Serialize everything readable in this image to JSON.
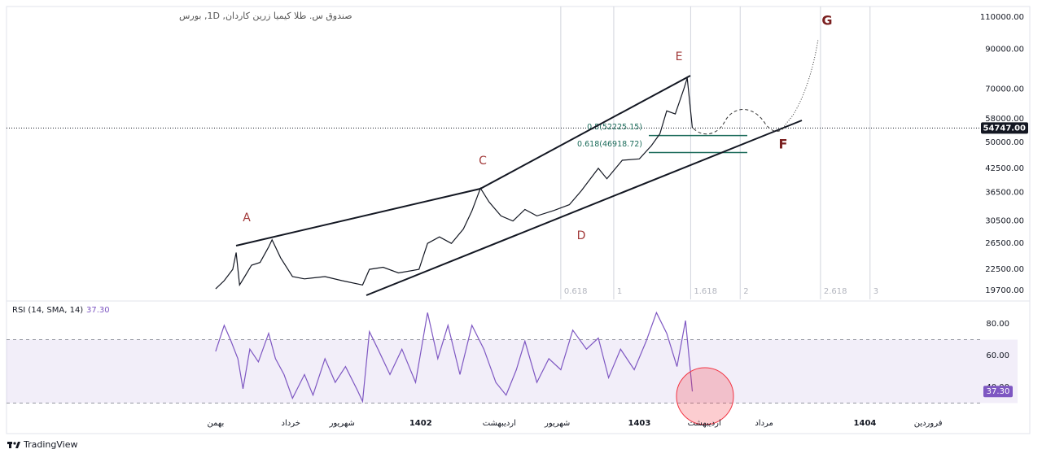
{
  "header": {
    "title": "صندوق س. طلا کیمیا زرین کاردان, 1D, بورس",
    "brand": "TradingView"
  },
  "chart_data": [
    {
      "type": "line",
      "color": "#131722",
      "log_scale": true,
      "xlim": [
        -12.24,
        43.6
      ],
      "ylim": [
        18630,
        117600
      ],
      "yticks": [
        {
          "value": 19700,
          "label": "19700.00"
        },
        {
          "value": 22500,
          "label": "22500.00"
        },
        {
          "value": 26500,
          "label": "26500.00"
        },
        {
          "value": 30500,
          "label": "30500.00"
        },
        {
          "value": 36500,
          "label": "36500.00"
        },
        {
          "value": 42500,
          "label": "42500.00"
        },
        {
          "value": 50000,
          "label": "50000.00"
        },
        {
          "value": 58000,
          "label": "58000.00"
        },
        {
          "value": 70000,
          "label": "70000.00"
        },
        {
          "value": 90000,
          "label": "90000.00"
        },
        {
          "value": 110000,
          "label": "110000.00"
        }
      ],
      "x": [
        0,
        0.5,
        1,
        1.2,
        1.4,
        1.7,
        2.1,
        2.6,
        3.1,
        3.3,
        3.8,
        4.5,
        5.2,
        6.4,
        7.4,
        8.6,
        9,
        9.8,
        10.7,
        11.9,
        12.4,
        13.1,
        13.8,
        14.5,
        15,
        15.5,
        16,
        16.7,
        17.4,
        18.1,
        18.8,
        19.8,
        20.7,
        21.4,
        22.4,
        22.9,
        23.8,
        24.8,
        25.5,
        26,
        26.4,
        26.9,
        27.4,
        27.6,
        27.9
      ],
      "values": [
        19900,
        20960,
        22500,
        25000,
        20400,
        21500,
        23100,
        23500,
        25900,
        27100,
        24200,
        21500,
        21200,
        21500,
        20960,
        20400,
        22500,
        22800,
        22000,
        22500,
        26500,
        27600,
        26500,
        29000,
        32500,
        37500,
        34400,
        31500,
        30500,
        32800,
        31500,
        32600,
        33800,
        36900,
        42500,
        39800,
        44700,
        45100,
        49000,
        52800,
        61000,
        59800,
        70000,
        75000,
        54747
      ],
      "last_price": {
        "value": 54747,
        "label": "54747.00"
      },
      "fib_levels": [
        {
          "value": 52225.15,
          "label": "0.5(52225.15)"
        },
        {
          "value": 46918.72,
          "label": "0.618(46918.72)"
        }
      ],
      "fib_color": "#1b6b5a",
      "time_fib": [
        {
          "value": 20.2,
          "label": "0.618"
        },
        {
          "value": 23.3,
          "label": "1"
        },
        {
          "value": 27.8,
          "label": "1.618"
        },
        {
          "value": 30.7,
          "label": "2"
        },
        {
          "value": 35.4,
          "label": "2.618"
        },
        {
          "value": 38.3,
          "label": "3"
        }
      ],
      "wave_labels": [
        "A",
        "C",
        "D",
        "E",
        "F",
        "G"
      ]
    },
    {
      "type": "line",
      "title": "RSI (14, SMA, 14)",
      "color": "#7e57c2",
      "current_label": "37.30",
      "xlim": [
        -12.24,
        43.6
      ],
      "ylim": [
        24.6,
        92.3
      ],
      "band": [
        30,
        70
      ],
      "yticks": [
        {
          "value": 40,
          "label": "40.00"
        },
        {
          "value": 60,
          "label": "60.00"
        },
        {
          "value": 80,
          "label": "80.00"
        }
      ],
      "xticks": [
        {
          "value": 0,
          "label": "بهمن"
        },
        {
          "value": 4.4,
          "label": "خرداد"
        },
        {
          "value": 7.4,
          "label": "شهریور"
        },
        {
          "value": 12.0,
          "label": "1402"
        },
        {
          "value": 16.6,
          "label": "اردیبهشت"
        },
        {
          "value": 20.0,
          "label": "شهریور"
        },
        {
          "value": 24.8,
          "label": "1403"
        },
        {
          "value": 28.6,
          "label": "اردیبهشت"
        },
        {
          "value": 32.1,
          "label": "مرداد"
        },
        {
          "value": 38.0,
          "label": "1404"
        },
        {
          "value": 41.7,
          "label": "فروردین"
        }
      ],
      "x": [
        0,
        0.5,
        0.9,
        1.3,
        1.6,
        2,
        2.5,
        3.1,
        3.5,
        4,
        4.5,
        5.2,
        5.7,
        6.4,
        7,
        7.6,
        8.3,
        8.6,
        9,
        9.5,
        10.2,
        10.9,
        11.7,
        12.4,
        13,
        13.6,
        14.3,
        15,
        15.7,
        16.4,
        17,
        17.6,
        18.1,
        18.8,
        19.5,
        20.2,
        20.9,
        21.7,
        22.4,
        23,
        23.7,
        24.5,
        25.2,
        25.8,
        26.4,
        27,
        27.5,
        27.9
      ],
      "values": [
        62.6,
        79,
        69,
        58,
        39,
        64,
        56,
        74,
        58,
        48,
        33,
        48,
        35,
        58,
        43,
        53,
        38,
        31,
        75,
        64,
        48,
        64,
        43,
        87,
        58,
        79,
        48,
        79,
        64,
        43,
        35,
        51,
        69,
        43,
        58,
        51,
        76,
        64,
        71,
        46,
        64,
        51,
        69,
        87,
        74,
        53,
        82,
        37.3
      ]
    }
  ]
}
